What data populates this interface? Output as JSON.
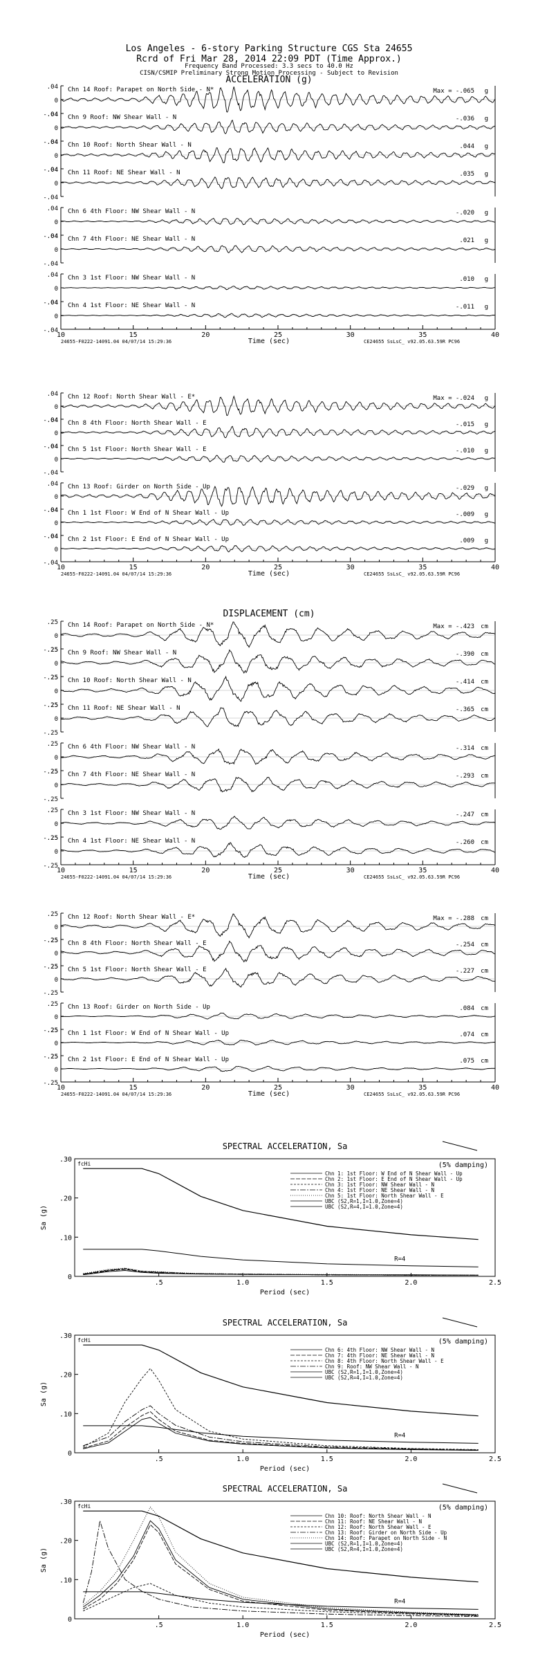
{
  "header": {
    "title_line1": "Los Angeles - 6-story Parking Structure     CGS Sta 24655",
    "title_line2": "Rcrd of Fri Mar 28, 2014 22:09 PDT (Time Approx.)",
    "title_line3": "Frequency Band Processed: 3.3 secs to 40.0 Hz",
    "title_line4": "CISN/CSMIP Preliminary Strong Motion Processing - Subject to Revision"
  },
  "footer": {
    "left": "24655-F0222-14091.04 04/07/14 15:29:36",
    "right": "CE24655  SsLsC_  v92.05.63.59R PC96"
  },
  "chart_data": [
    {
      "type": "line",
      "title": "ACCELERATION (g)",
      "xlabel": "Time (sec)",
      "xlim": [
        10,
        40
      ],
      "x_ticks": [
        10,
        15,
        20,
        25,
        30,
        35,
        40
      ],
      "y_ticks": [
        ".04",
        "0",
        "-.04"
      ],
      "unit": "g",
      "series": [
        {
          "name": "Chn 14  Roof: Parapet on North Side - N*",
          "max_label": "Max =   -.065",
          "peak": 0.065
        },
        {
          "name": "Chn 9  Roof: NW Shear Wall - N",
          "max_label": "-.036",
          "peak": 0.036
        },
        {
          "name": "Chn 10  Roof: North Shear Wall - N",
          "max_label": ".044",
          "peak": 0.044
        },
        {
          "name": "Chn 11  Roof: NE Shear Wall - N",
          "max_label": ".035",
          "peak": 0.035
        },
        {
          "name": "Chn 6  4th Floor: NW Shear Wall - N",
          "max_label": "-.020",
          "peak": 0.02
        },
        {
          "name": "Chn 7  4th Floor: NE Shear Wall - N",
          "max_label": ".021",
          "peak": 0.021
        },
        {
          "name": "Chn 3  1st Floor: NW Shear Wall - N",
          "max_label": ".010",
          "peak": 0.01
        },
        {
          "name": "Chn 4  1st Floor: NE Shear Wall - N",
          "max_label": "-.011",
          "peak": 0.011
        }
      ]
    },
    {
      "type": "line",
      "xlabel": "Time (sec)",
      "xlim": [
        10,
        40
      ],
      "x_ticks": [
        10,
        15,
        20,
        25,
        30,
        35,
        40
      ],
      "y_ticks": [
        ".04",
        "0",
        "-.04"
      ],
      "unit": "g",
      "series": [
        {
          "name": "Chn 12  Roof: North Shear Wall - E*",
          "max_label": "Max =   -.024",
          "peak": 0.024
        },
        {
          "name": "Chn 8  4th Floor: North Shear Wall - E",
          "max_label": "-.015",
          "peak": 0.015
        },
        {
          "name": "Chn 5  1st Floor: North Shear Wall - E",
          "max_label": "-.010",
          "peak": 0.01
        },
        {
          "name": "Chn 13  Roof: Girder on North Side - Up",
          "max_label": "-.029",
          "peak": 0.029
        },
        {
          "name": "Chn 1  1st Floor: W End of N Shear Wall - Up",
          "max_label": "-.009",
          "peak": 0.009
        },
        {
          "name": "Chn 2  1st Floor: E End of N Shear Wall - Up",
          "max_label": ".009",
          "peak": 0.009
        }
      ]
    },
    {
      "type": "line",
      "title": "DISPLACEMENT (cm)",
      "xlabel": "Time (sec)",
      "xlim": [
        10,
        40
      ],
      "x_ticks": [
        10,
        15,
        20,
        25,
        30,
        35,
        40
      ],
      "y_ticks": [
        ".25",
        "0",
        "-.25"
      ],
      "unit": "cm",
      "series": [
        {
          "name": "Chn 14  Roof: Parapet on North Side - N*",
          "max_label": "Max =   -.423",
          "peak": 0.423
        },
        {
          "name": "Chn 9  Roof: NW Shear Wall - N",
          "max_label": "-.390",
          "peak": 0.39
        },
        {
          "name": "Chn 10  Roof: North Shear Wall - N",
          "max_label": "-.414",
          "peak": 0.414
        },
        {
          "name": "Chn 11  Roof: NE Shear Wall - N",
          "max_label": "-.365",
          "peak": 0.365
        },
        {
          "name": "Chn 6  4th Floor: NW Shear Wall - N",
          "max_label": "-.314",
          "peak": 0.314
        },
        {
          "name": "Chn 7  4th Floor: NE Shear Wall - N",
          "max_label": "-.293",
          "peak": 0.293
        },
        {
          "name": "Chn 3  1st Floor: NW Shear Wall - N",
          "max_label": "-.247",
          "peak": 0.247
        },
        {
          "name": "Chn 4  1st Floor: NE Shear Wall - N",
          "max_label": "-.260",
          "peak": 0.26
        }
      ]
    },
    {
      "type": "line",
      "xlabel": "Time (sec)",
      "xlim": [
        10,
        40
      ],
      "x_ticks": [
        10,
        15,
        20,
        25,
        30,
        35,
        40
      ],
      "y_ticks": [
        ".25",
        "0",
        "-.25"
      ],
      "unit": "cm",
      "series": [
        {
          "name": "Chn 12  Roof: North Shear Wall - E*",
          "max_label": "Max =   -.288",
          "peak": 0.288
        },
        {
          "name": "Chn 8  4th Floor: North Shear Wall - E",
          "max_label": "-.254",
          "peak": 0.254
        },
        {
          "name": "Chn 5  1st Floor: North Shear Wall - E",
          "max_label": "-.227",
          "peak": 0.227
        },
        {
          "name": "Chn 13  Roof: Girder on North Side - Up",
          "max_label": ".084",
          "peak": 0.084
        },
        {
          "name": "Chn 1  1st Floor: W End of N Shear Wall - Up",
          "max_label": ".074",
          "peak": 0.074
        },
        {
          "name": "Chn 2  1st Floor: E End of N Shear Wall - Up",
          "max_label": ".075",
          "peak": 0.075
        }
      ]
    },
    {
      "type": "line",
      "title": "SPECTRAL ACCELERATION, Sa",
      "xlabel": "Period (sec)",
      "ylabel": "Sa (g)",
      "xlim": [
        0,
        2.5
      ],
      "ylim": [
        0,
        0.3
      ],
      "x_ticks": [
        ".5",
        "1.0",
        "1.5",
        "2.0",
        "2.5"
      ],
      "y_ticks": [
        ".30",
        ".20",
        ".10",
        "0"
      ],
      "note": "(5% damping)",
      "corner_label": "fcHi",
      "curve_label": "R=4",
      "legend": [
        "Chn 1: 1st Floor: W End of N Shear Wall - Up",
        "Chn 2: 1st Floor: E End of N Shear Wall - Up",
        "Chn 3: 1st Floor: NW Shear Wall - N",
        "Chn 4: 1st Floor: NE Shear Wall - N",
        "Chn 5: 1st Floor: North Shear Wall - E",
        "UBC (S2,R=1,I=1.0,Zone=4)",
        "UBC (S2,R=4,I=1.0,Zone=4)"
      ],
      "ubc_r1": {
        "x": [
          0.05,
          0.4,
          0.5,
          0.75,
          1.0,
          1.5,
          2.0,
          2.4
        ],
        "y": [
          0.275,
          0.275,
          0.262,
          0.204,
          0.168,
          0.128,
          0.106,
          0.094
        ]
      },
      "ubc_r4": {
        "x": [
          0.05,
          0.4,
          0.5,
          0.75,
          1.0,
          1.5,
          2.0,
          2.4
        ],
        "y": [
          0.069,
          0.069,
          0.065,
          0.051,
          0.042,
          0.032,
          0.027,
          0.024
        ]
      },
      "responses": [
        {
          "x": [
            0.05,
            0.2,
            0.3,
            0.4,
            0.5,
            0.7,
            1.0,
            1.5,
            2.0,
            2.4
          ],
          "y": [
            0.004,
            0.012,
            0.015,
            0.01,
            0.008,
            0.006,
            0.005,
            0.004,
            0.004,
            0.003
          ]
        },
        {
          "x": [
            0.05,
            0.2,
            0.3,
            0.4,
            0.5,
            0.7,
            1.0,
            1.5,
            2.0,
            2.4
          ],
          "y": [
            0.005,
            0.014,
            0.018,
            0.011,
            0.009,
            0.006,
            0.005,
            0.004,
            0.003,
            0.003
          ]
        },
        {
          "x": [
            0.05,
            0.2,
            0.3,
            0.4,
            0.5,
            0.7,
            1.0,
            1.5,
            2.0,
            2.4
          ],
          "y": [
            0.006,
            0.016,
            0.02,
            0.013,
            0.01,
            0.007,
            0.005,
            0.004,
            0.003,
            0.003
          ]
        },
        {
          "x": [
            0.05,
            0.2,
            0.3,
            0.4,
            0.5,
            0.7,
            1.0,
            1.5,
            2.0,
            2.4
          ],
          "y": [
            0.006,
            0.015,
            0.019,
            0.012,
            0.011,
            0.007,
            0.006,
            0.004,
            0.003,
            0.003
          ]
        },
        {
          "x": [
            0.05,
            0.2,
            0.3,
            0.4,
            0.5,
            0.7,
            1.0,
            1.5,
            2.0,
            2.4
          ],
          "y": [
            0.007,
            0.018,
            0.021,
            0.014,
            0.012,
            0.008,
            0.006,
            0.005,
            0.004,
            0.003
          ]
        }
      ]
    },
    {
      "type": "line",
      "title": "SPECTRAL ACCELERATION, Sa",
      "xlabel": "Period (sec)",
      "ylabel": "Sa (g)",
      "xlim": [
        0,
        2.5
      ],
      "ylim": [
        0,
        0.3
      ],
      "x_ticks": [
        ".5",
        "1.0",
        "1.5",
        "2.0",
        "2.5"
      ],
      "y_ticks": [
        ".30",
        ".20",
        ".10",
        "0"
      ],
      "note": "(5% damping)",
      "corner_label": "fcHi",
      "curve_label": "R=4",
      "legend": [
        "Chn 6: 4th Floor: NW Shear Wall - N",
        "Chn 7: 4th Floor: NE Shear Wall - N",
        "Chn 8: 4th Floor: North Shear Wall - E",
        "Chn 9: Roof: NW Shear Wall - N",
        "UBC (S2,R=1,I=1.0,Zone=4)",
        "UBC (S2,R=4,I=1.0,Zone=4)"
      ],
      "ubc_r1": {
        "x": [
          0.05,
          0.4,
          0.5,
          0.75,
          1.0,
          1.5,
          2.0,
          2.4
        ],
        "y": [
          0.275,
          0.275,
          0.262,
          0.204,
          0.168,
          0.128,
          0.106,
          0.094
        ]
      },
      "ubc_r4": {
        "x": [
          0.05,
          0.4,
          0.5,
          0.75,
          1.0,
          1.5,
          2.0,
          2.4
        ],
        "y": [
          0.069,
          0.069,
          0.065,
          0.051,
          0.042,
          0.032,
          0.027,
          0.024
        ]
      },
      "responses": [
        {
          "x": [
            0.05,
            0.2,
            0.3,
            0.4,
            0.45,
            0.5,
            0.6,
            0.8,
            1.0,
            1.5,
            2.0,
            2.4
          ],
          "y": [
            0.01,
            0.025,
            0.055,
            0.085,
            0.09,
            0.075,
            0.05,
            0.03,
            0.022,
            0.012,
            0.008,
            0.006
          ]
        },
        {
          "x": [
            0.05,
            0.2,
            0.3,
            0.4,
            0.45,
            0.5,
            0.6,
            0.8,
            1.0,
            1.5,
            2.0,
            2.4
          ],
          "y": [
            0.012,
            0.03,
            0.065,
            0.095,
            0.105,
            0.085,
            0.055,
            0.032,
            0.024,
            0.013,
            0.009,
            0.006
          ]
        },
        {
          "x": [
            0.05,
            0.2,
            0.3,
            0.4,
            0.45,
            0.5,
            0.6,
            0.8,
            1.0,
            1.5,
            2.0,
            2.4
          ],
          "y": [
            0.015,
            0.05,
            0.13,
            0.19,
            0.215,
            0.185,
            0.11,
            0.055,
            0.035,
            0.018,
            0.011,
            0.008
          ]
        },
        {
          "x": [
            0.05,
            0.2,
            0.3,
            0.4,
            0.45,
            0.5,
            0.6,
            0.8,
            1.0,
            1.5,
            2.0,
            2.4
          ],
          "y": [
            0.018,
            0.04,
            0.08,
            0.11,
            0.12,
            0.1,
            0.07,
            0.04,
            0.028,
            0.015,
            0.01,
            0.007
          ]
        }
      ]
    },
    {
      "type": "line",
      "title": "SPECTRAL ACCELERATION, Sa",
      "xlabel": "Period (sec)",
      "ylabel": "Sa (g)",
      "xlim": [
        0,
        2.5
      ],
      "ylim": [
        0,
        0.3
      ],
      "x_ticks": [
        ".5",
        "1.0",
        "1.5",
        "2.0",
        "2.5"
      ],
      "y_ticks": [
        ".30",
        ".20",
        ".10",
        "0"
      ],
      "note": "(5% damping)",
      "corner_label": "fcHi",
      "curve_label": "R=4",
      "legend": [
        "Chn 10: Roof: North Shear Wall - N",
        "Chn 11: Roof: NE Shear Wall - N",
        "Chn 12: Roof: North Shear Wall - E",
        "Chn 13: Roof: Girder on North Side - Up",
        "Chn 14: Roof: Parapet on North Side - N",
        "UBC (S2,R=1,I=1.0,Zone=4)",
        "UBC (S2,R=4,I=1.0,Zone=4)"
      ],
      "ubc_r1": {
        "x": [
          0.05,
          0.4,
          0.5,
          0.75,
          1.0,
          1.5,
          2.0,
          2.4
        ],
        "y": [
          0.275,
          0.275,
          0.262,
          0.204,
          0.168,
          0.128,
          0.106,
          0.094
        ]
      },
      "ubc_r4": {
        "x": [
          0.05,
          0.4,
          0.5,
          0.75,
          1.0,
          1.5,
          2.0,
          2.4
        ],
        "y": [
          0.069,
          0.069,
          0.065,
          0.051,
          0.042,
          0.032,
          0.027,
          0.024
        ]
      },
      "responses": [
        {
          "x": [
            0.05,
            0.15,
            0.25,
            0.35,
            0.45,
            0.5,
            0.6,
            0.8,
            1.0,
            1.5,
            2.0,
            2.4
          ],
          "y": [
            0.03,
            0.06,
            0.1,
            0.16,
            0.25,
            0.23,
            0.15,
            0.08,
            0.05,
            0.025,
            0.015,
            0.01
          ]
        },
        {
          "x": [
            0.05,
            0.15,
            0.25,
            0.35,
            0.45,
            0.5,
            0.6,
            0.8,
            1.0,
            1.5,
            2.0,
            2.4
          ],
          "y": [
            0.025,
            0.05,
            0.09,
            0.15,
            0.24,
            0.22,
            0.14,
            0.075,
            0.045,
            0.022,
            0.014,
            0.009
          ]
        },
        {
          "x": [
            0.05,
            0.15,
            0.25,
            0.35,
            0.45,
            0.5,
            0.6,
            0.8,
            1.0,
            1.5,
            2.0,
            2.4
          ],
          "y": [
            0.02,
            0.04,
            0.06,
            0.08,
            0.09,
            0.08,
            0.06,
            0.04,
            0.03,
            0.018,
            0.012,
            0.008
          ]
        },
        {
          "x": [
            0.05,
            0.1,
            0.15,
            0.2,
            0.25,
            0.3,
            0.4,
            0.5,
            0.7,
            1.0,
            1.5,
            2.0,
            2.4
          ],
          "y": [
            0.04,
            0.12,
            0.25,
            0.18,
            0.14,
            0.1,
            0.07,
            0.05,
            0.03,
            0.02,
            0.012,
            0.008,
            0.006
          ]
        },
        {
          "x": [
            0.05,
            0.15,
            0.25,
            0.35,
            0.45,
            0.5,
            0.6,
            0.8,
            1.0,
            1.5,
            2.0,
            2.4
          ],
          "y": [
            0.035,
            0.07,
            0.12,
            0.2,
            0.285,
            0.26,
            0.17,
            0.09,
            0.055,
            0.028,
            0.017,
            0.011
          ]
        }
      ]
    }
  ]
}
